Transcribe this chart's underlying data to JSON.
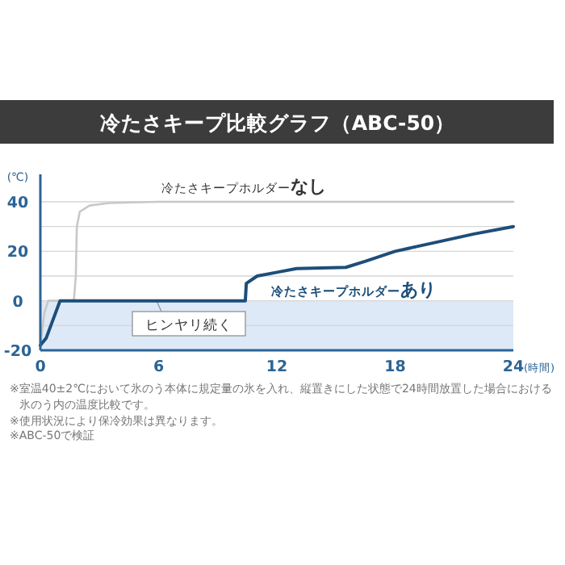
{
  "chart_data": {
    "type": "line",
    "title": "冷たさキープ比較グラフ（ABC-50）",
    "xlabel": "(時間)",
    "ylabel": "(℃)",
    "x": [
      0,
      0.2,
      0.4,
      1.7,
      1.8,
      1.85,
      2.0,
      2.5,
      3.5,
      6,
      24
    ],
    "series": [
      {
        "name": "冷たさキープホルダー**なし**",
        "color": "#c8c8c8",
        "values": [
          -18,
          -5,
          0,
          0,
          10,
          30,
          36,
          38.5,
          39.5,
          40,
          40
        ]
      },
      {
        "name": "冷たさキープホルダー**あり**",
        "color": "#1d4e79",
        "x": [
          0,
          0.3,
          1.0,
          10.4,
          10.45,
          11,
          12,
          13,
          15.5,
          16.5,
          18,
          20,
          22,
          24
        ],
        "values": [
          -18,
          -15,
          0,
          0,
          7,
          10,
          11.5,
          13,
          13.5,
          16,
          20,
          23.5,
          27,
          30
        ]
      }
    ],
    "xlim": [
      0,
      24
    ],
    "xticks": [
      0,
      6,
      12,
      18,
      24
    ],
    "ylim": [
      -20,
      40
    ],
    "yticks": [
      -20,
      {
        "value": -10,
        "label": null
      },
      0,
      {
        "value": 10,
        "label": null
      },
      20,
      {
        "value": 30,
        "label": null
      },
      40
    ],
    "grid": "y",
    "legend": false,
    "marker": "none",
    "line_style": "solid",
    "bands": [
      {
        "axis": "y",
        "from": -20,
        "to": 0,
        "label": "ヒンヤリ続く",
        "color": "#dde9f6"
      }
    ],
    "annotations": [
      "※室温40±2℃において氷のう本体に規定量の氷を入れ、縦置きにした状態で24時間放置した場合における氷のう内の温度比較です。",
      "※使用状況により保冷効果は異なります。",
      "※ABC-50で検証"
    ]
  }
}
